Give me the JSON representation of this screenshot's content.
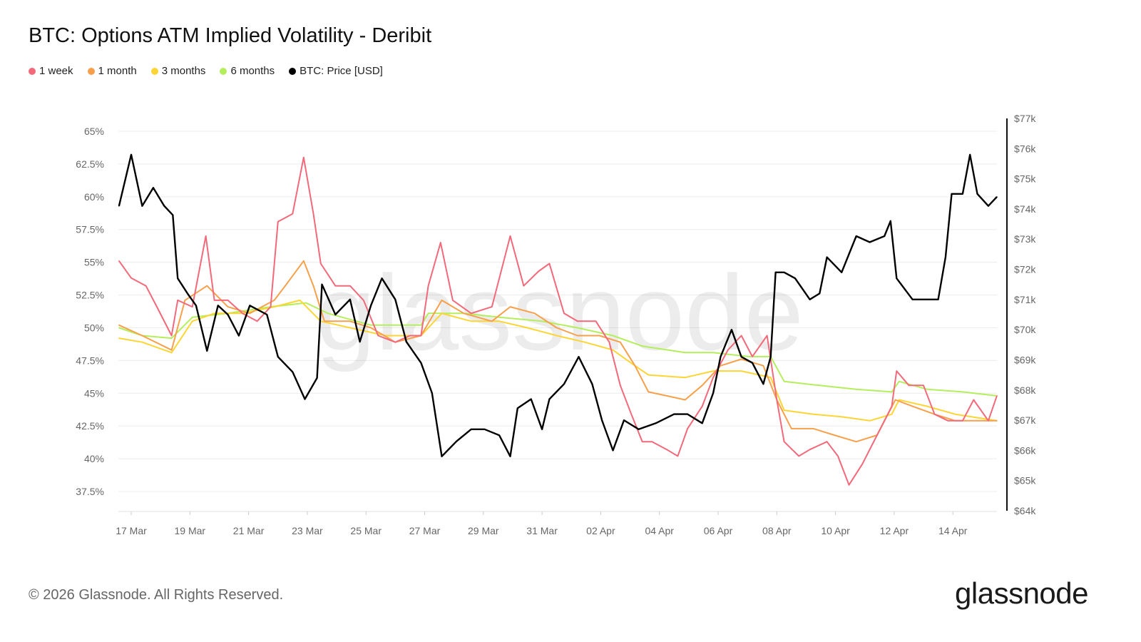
{
  "chart_data": {
    "type": "line",
    "title": "BTC: Options ATM Implied Volatility - Deribit",
    "year": 2026,
    "x_ticks": [
      "17 Mar",
      "19 Mar",
      "21 Mar",
      "23 Mar",
      "25 Mar",
      "27 Mar",
      "29 Mar",
      "31 Mar",
      "02 Apr",
      "04 Apr",
      "06 Apr",
      "08 Apr",
      "10 Apr",
      "12 Apr",
      "14 Apr"
    ],
    "y_left": {
      "ticks": [
        "65%",
        "62.5%",
        "60%",
        "57.5%",
        "55%",
        "52.5%",
        "50%",
        "47.5%",
        "45%",
        "42.5%",
        "40%",
        "37.5%"
      ],
      "range": [
        37.5,
        65
      ],
      "unit": "%"
    },
    "y_right": {
      "ticks": [
        "$77k",
        "$76k",
        "$75k",
        "$74k",
        "$73k",
        "$72k",
        "$71k",
        "$70k",
        "$69k",
        "$68k",
        "$67k",
        "$66k",
        "$65k",
        "$64k"
      ],
      "range": [
        64,
        77
      ],
      "unit": "USD thousands"
    },
    "grid": true,
    "legend_placement": "top-left",
    "series": [
      {
        "name": "6 months",
        "color": "#b5ee5c",
        "axis": "left",
        "points": [
          [
            "03-16 14",
            50.0
          ],
          [
            "03-17 09",
            49.4
          ],
          [
            "03-18 09",
            49.2
          ],
          [
            "03-19 02",
            50.8
          ],
          [
            "03-20 07",
            51.1
          ],
          [
            "03-21 18",
            51.6
          ],
          [
            "03-22 23",
            51.9
          ],
          [
            "03-23 17",
            51.1
          ],
          [
            "03-25 04",
            50.2
          ],
          [
            "03-26 21",
            50.2
          ],
          [
            "03-27 03",
            51.1
          ],
          [
            "03-28 08",
            51.1
          ],
          [
            "03-29 13",
            50.8
          ],
          [
            "03-31 00",
            50.5
          ],
          [
            "04-01 05",
            50.0
          ],
          [
            "04-02 10",
            49.4
          ],
          [
            "04-03 10",
            48.6
          ],
          [
            "04-04 21",
            48.1
          ],
          [
            "04-05 20",
            48.1
          ],
          [
            "04-07 01",
            47.8
          ],
          [
            "04-07 19",
            47.8
          ],
          [
            "04-08 06",
            45.9
          ],
          [
            "04-09 11",
            45.6
          ],
          [
            "04-10 17",
            45.3
          ],
          [
            "04-11 22",
            45.1
          ],
          [
            "04-12 04",
            45.9
          ],
          [
            "04-13 03",
            45.3
          ],
          [
            "04-14 08",
            45.1
          ],
          [
            "04-15 12",
            44.8
          ]
        ]
      },
      {
        "name": "3 months",
        "color": "#fcd535",
        "axis": "left",
        "points": [
          [
            "03-16 14",
            49.2
          ],
          [
            "03-17 09",
            48.9
          ],
          [
            "03-18 09",
            48.1
          ],
          [
            "03-19 02",
            50.5
          ],
          [
            "03-19 20",
            51.1
          ],
          [
            "03-20 19",
            51.1
          ],
          [
            "03-21 21",
            51.6
          ],
          [
            "03-22 18",
            52.1
          ],
          [
            "03-23 11",
            50.5
          ],
          [
            "03-24 11",
            50.0
          ],
          [
            "03-25 16",
            49.4
          ],
          [
            "03-26 21",
            49.4
          ],
          [
            "03-27 14",
            51.1
          ],
          [
            "03-28 14",
            50.5
          ],
          [
            "03-29 13",
            50.5
          ],
          [
            "03-30 12",
            50.0
          ],
          [
            "03-31 12",
            49.4
          ],
          [
            "04-01 11",
            48.9
          ],
          [
            "04-02 10",
            48.3
          ],
          [
            "04-03 04",
            47.1
          ],
          [
            "04-03 15",
            46.4
          ],
          [
            "04-04 21",
            46.2
          ],
          [
            "04-05 20",
            46.7
          ],
          [
            "04-06 19",
            46.7
          ],
          [
            "04-07 19",
            46.2
          ],
          [
            "04-08 06",
            43.7
          ],
          [
            "04-09 06",
            43.4
          ],
          [
            "04-10 05",
            43.2
          ],
          [
            "04-11 04",
            42.9
          ],
          [
            "04-11 22",
            43.4
          ],
          [
            "04-12 04",
            44.5
          ],
          [
            "04-13 03",
            44.0
          ],
          [
            "04-14 02",
            43.4
          ],
          [
            "04-15 12",
            42.9
          ]
        ]
      },
      {
        "name": "1 month",
        "color": "#f7a04b",
        "axis": "left",
        "points": [
          [
            "03-16 14",
            50.2
          ],
          [
            "03-17 09",
            49.4
          ],
          [
            "03-18 09",
            48.3
          ],
          [
            "03-18 20",
            52.1
          ],
          [
            "03-19 14",
            53.2
          ],
          [
            "03-20 07",
            51.6
          ],
          [
            "03-21 01",
            51.1
          ],
          [
            "03-21 21",
            52.1
          ],
          [
            "03-22 06",
            53.2
          ],
          [
            "03-22 21",
            55.1
          ],
          [
            "03-23 05",
            53.2
          ],
          [
            "03-23 14",
            50.5
          ],
          [
            "03-24 11",
            50.5
          ],
          [
            "03-25 04",
            50.0
          ],
          [
            "03-26 00",
            48.9
          ],
          [
            "03-26 21",
            49.4
          ],
          [
            "03-27 14",
            52.1
          ],
          [
            "03-28 08",
            51.1
          ],
          [
            "03-29 07",
            50.5
          ],
          [
            "03-29 22",
            51.6
          ],
          [
            "03-30 18",
            51.1
          ],
          [
            "03-31 12",
            50.0
          ],
          [
            "04-01 05",
            49.4
          ],
          [
            "04-01 23",
            49.4
          ],
          [
            "04-02 16",
            48.9
          ],
          [
            "04-03 04",
            47.1
          ],
          [
            "04-03 15",
            45.1
          ],
          [
            "04-04 06",
            44.8
          ],
          [
            "04-04 21",
            44.5
          ],
          [
            "04-05 11",
            45.6
          ],
          [
            "04-06 02",
            47.1
          ],
          [
            "04-06 19",
            47.6
          ],
          [
            "04-07 13",
            47.1
          ],
          [
            "04-08 00",
            44.5
          ],
          [
            "04-08 12",
            42.3
          ],
          [
            "04-09 06",
            42.3
          ],
          [
            "04-09 23",
            41.8
          ],
          [
            "04-10 17",
            41.3
          ],
          [
            "04-11 10",
            41.8
          ],
          [
            "04-12 01",
            44.5
          ],
          [
            "04-12 15",
            44.0
          ],
          [
            "04-13 09",
            43.4
          ],
          [
            "04-14 02",
            42.9
          ],
          [
            "04-14 20",
            42.9
          ],
          [
            "04-15 12",
            42.9
          ]
        ]
      },
      {
        "name": "1 week",
        "color": "#f2697a",
        "axis": "left",
        "points": [
          [
            "03-16 14",
            55.1
          ],
          [
            "03-17 00",
            53.8
          ],
          [
            "03-17 12",
            53.2
          ],
          [
            "03-17 21",
            51.6
          ],
          [
            "03-18 09",
            49.4
          ],
          [
            "03-18 14",
            52.1
          ],
          [
            "03-19 02",
            51.6
          ],
          [
            "03-19 13",
            57.0
          ],
          [
            "03-19 20",
            52.1
          ],
          [
            "03-20 07",
            52.1
          ],
          [
            "03-20 19",
            51.1
          ],
          [
            "03-21 07",
            50.5
          ],
          [
            "03-21 18",
            51.6
          ],
          [
            "03-22 00",
            58.1
          ],
          [
            "03-22 12",
            58.7
          ],
          [
            "03-22 21",
            63.0
          ],
          [
            "03-23 05",
            58.7
          ],
          [
            "03-23 11",
            54.9
          ],
          [
            "03-23 23",
            53.2
          ],
          [
            "03-24 11",
            53.2
          ],
          [
            "03-24 22",
            52.1
          ],
          [
            "03-25 10",
            49.4
          ],
          [
            "03-26 00",
            48.9
          ],
          [
            "03-26 12",
            49.4
          ],
          [
            "03-26 21",
            49.4
          ],
          [
            "03-27 03",
            53.2
          ],
          [
            "03-27 13",
            56.5
          ],
          [
            "03-27 23",
            52.1
          ],
          [
            "03-28 14",
            51.1
          ],
          [
            "03-29 07",
            51.6
          ],
          [
            "03-29 22",
            57.0
          ],
          [
            "03-30 09",
            53.2
          ],
          [
            "03-30 21",
            54.3
          ],
          [
            "03-31 06",
            54.9
          ],
          [
            "03-31 18",
            51.1
          ],
          [
            "04-01 05",
            50.5
          ],
          [
            "04-01 20",
            50.5
          ],
          [
            "04-02 07",
            48.9
          ],
          [
            "04-02 16",
            45.6
          ],
          [
            "04-03 01",
            43.4
          ],
          [
            "04-03 10",
            41.3
          ],
          [
            "04-03 18",
            41.3
          ],
          [
            "04-04 06",
            40.7
          ],
          [
            "04-04 15",
            40.2
          ],
          [
            "04-04 23",
            42.3
          ],
          [
            "04-05 11",
            44.0
          ],
          [
            "04-05 20",
            46.2
          ],
          [
            "04-06 08",
            48.3
          ],
          [
            "04-06 19",
            49.4
          ],
          [
            "04-07 04",
            47.8
          ],
          [
            "04-07 16",
            49.4
          ],
          [
            "04-08 00",
            44.5
          ],
          [
            "04-08 06",
            41.3
          ],
          [
            "04-08 18",
            40.2
          ],
          [
            "04-09 03",
            40.7
          ],
          [
            "04-09 17",
            41.3
          ],
          [
            "04-10 02",
            40.2
          ],
          [
            "04-10 11",
            38.0
          ],
          [
            "04-10 22",
            39.6
          ],
          [
            "04-11 10",
            41.8
          ],
          [
            "04-11 22",
            44.0
          ],
          [
            "04-12 02",
            46.7
          ],
          [
            "04-12 12",
            45.6
          ],
          [
            "04-13 00",
            45.6
          ],
          [
            "04-13 09",
            43.4
          ],
          [
            "04-13 20",
            42.9
          ],
          [
            "04-14 08",
            42.9
          ],
          [
            "04-14 17",
            44.5
          ],
          [
            "04-15 05",
            42.9
          ],
          [
            "04-15 12",
            44.8
          ]
        ]
      },
      {
        "name": "BTC: Price [USD]",
        "color": "#000000",
        "axis": "right",
        "points": [
          [
            "03-16 14",
            74.1
          ],
          [
            "03-17 00",
            75.8
          ],
          [
            "03-17 09",
            74.1
          ],
          [
            "03-17 18",
            74.7
          ],
          [
            "03-18 03",
            74.1
          ],
          [
            "03-18 10",
            73.8
          ],
          [
            "03-18 14",
            71.7
          ],
          [
            "03-18 22",
            71.2
          ],
          [
            "03-19 05",
            70.8
          ],
          [
            "03-19 14",
            69.3
          ],
          [
            "03-19 23",
            70.8
          ],
          [
            "03-20 07",
            70.5
          ],
          [
            "03-20 16",
            69.8
          ],
          [
            "03-21 01",
            70.8
          ],
          [
            "03-21 15",
            70.5
          ],
          [
            "03-22 00",
            69.1
          ],
          [
            "03-22 12",
            68.6
          ],
          [
            "03-22 22",
            67.7
          ],
          [
            "03-23 08",
            68.4
          ],
          [
            "03-23 12",
            71.5
          ],
          [
            "03-23 23",
            70.5
          ],
          [
            "03-24 11",
            71.0
          ],
          [
            "03-24 19",
            69.6
          ],
          [
            "03-25 04",
            70.8
          ],
          [
            "03-25 13",
            71.7
          ],
          [
            "03-26 00",
            71.0
          ],
          [
            "03-26 09",
            69.6
          ],
          [
            "03-26 21",
            68.9
          ],
          [
            "03-27 06",
            67.9
          ],
          [
            "03-27 14",
            65.8
          ],
          [
            "03-28 02",
            66.3
          ],
          [
            "03-28 14",
            66.7
          ],
          [
            "03-29 01",
            66.7
          ],
          [
            "03-29 13",
            66.5
          ],
          [
            "03-29 22",
            65.8
          ],
          [
            "03-30 04",
            67.4
          ],
          [
            "03-30 15",
            67.7
          ],
          [
            "03-31 00",
            66.7
          ],
          [
            "03-31 06",
            67.7
          ],
          [
            "03-31 18",
            68.2
          ],
          [
            "04-01 06",
            69.1
          ],
          [
            "04-01 17",
            68.2
          ],
          [
            "04-02 01",
            67.0
          ],
          [
            "04-02 10",
            66.0
          ],
          [
            "04-02 19",
            67.0
          ],
          [
            "04-03 07",
            66.7
          ],
          [
            "04-03 21",
            66.9
          ],
          [
            "04-04 12",
            67.2
          ],
          [
            "04-04 23",
            67.2
          ],
          [
            "04-05 11",
            66.9
          ],
          [
            "04-05 20",
            67.9
          ],
          [
            "04-06 02",
            69.1
          ],
          [
            "04-06 11",
            70.0
          ],
          [
            "04-06 19",
            69.1
          ],
          [
            "04-07 04",
            68.9
          ],
          [
            "04-07 13",
            68.2
          ],
          [
            "04-07 19",
            69.1
          ],
          [
            "04-07 23",
            71.9
          ],
          [
            "04-08 06",
            71.9
          ],
          [
            "04-08 15",
            71.7
          ],
          [
            "04-09 03",
            71.0
          ],
          [
            "04-09 11",
            71.2
          ],
          [
            "04-09 17",
            72.4
          ],
          [
            "04-10 05",
            71.9
          ],
          [
            "04-10 17",
            73.1
          ],
          [
            "04-11 04",
            72.9
          ],
          [
            "04-11 16",
            73.1
          ],
          [
            "04-11 21",
            73.6
          ],
          [
            "04-12 02",
            71.7
          ],
          [
            "04-12 15",
            71.0
          ],
          [
            "04-13 03",
            71.0
          ],
          [
            "04-13 12",
            71.0
          ],
          [
            "04-13 18",
            72.4
          ],
          [
            "04-13 23",
            74.5
          ],
          [
            "04-14 08",
            74.5
          ],
          [
            "04-14 14",
            75.8
          ],
          [
            "04-14 20",
            74.5
          ],
          [
            "04-15 05",
            74.1
          ],
          [
            "04-15 12",
            74.4
          ]
        ]
      }
    ]
  },
  "legend": [
    {
      "label": "1 week",
      "color": "#f2697a"
    },
    {
      "label": "1 month",
      "color": "#f7a04b"
    },
    {
      "label": "3 months",
      "color": "#fcd535"
    },
    {
      "label": "6 months",
      "color": "#b5ee5c"
    },
    {
      "label": "BTC: Price [USD]",
      "color": "#000000"
    }
  ],
  "watermark": "glassnode",
  "footer": {
    "copyright": "© 2026 Glassnode. All Rights Reserved.",
    "logo": "glassnode"
  }
}
